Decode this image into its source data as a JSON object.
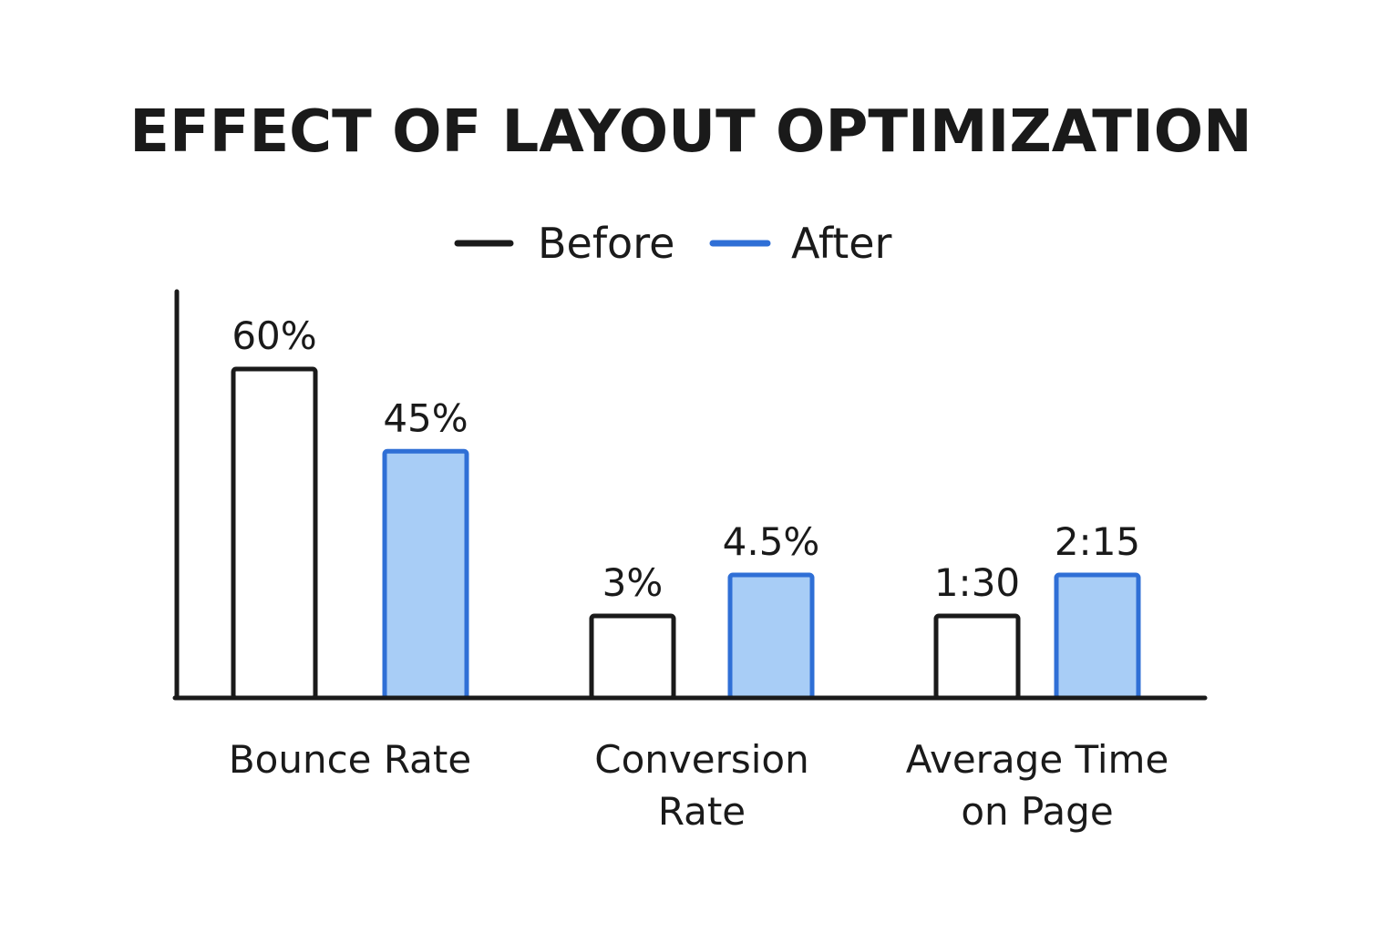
{
  "chart_data": {
    "type": "bar",
    "title": "EFFECT OF LAYOUT OPTIMIZATION",
    "xlabel": "",
    "ylabel": "",
    "grid": false,
    "legend_position": "top-center",
    "categories": [
      [
        "Bounce Rate"
      ],
      [
        "Conversion",
        "Rate"
      ],
      [
        "Average Time",
        "on Page"
      ]
    ],
    "series": [
      {
        "name": "Before",
        "color": "#1a1a1a",
        "fill": "#ffffff",
        "labels": [
          "60%",
          "3%",
          "1:30"
        ],
        "values": [
          60,
          3,
          90
        ]
      },
      {
        "name": "After",
        "color": "#2f6fd6",
        "fill": "#a8cdf6",
        "labels": [
          "45%",
          "4.5%",
          "2:15"
        ],
        "values": [
          45,
          4.5,
          135
        ]
      }
    ],
    "colors": {
      "axis": "#1a1a1a",
      "before_stroke": "#1a1a1a",
      "after_stroke": "#2f6fd6",
      "after_fill": "#a8cdf6"
    }
  }
}
